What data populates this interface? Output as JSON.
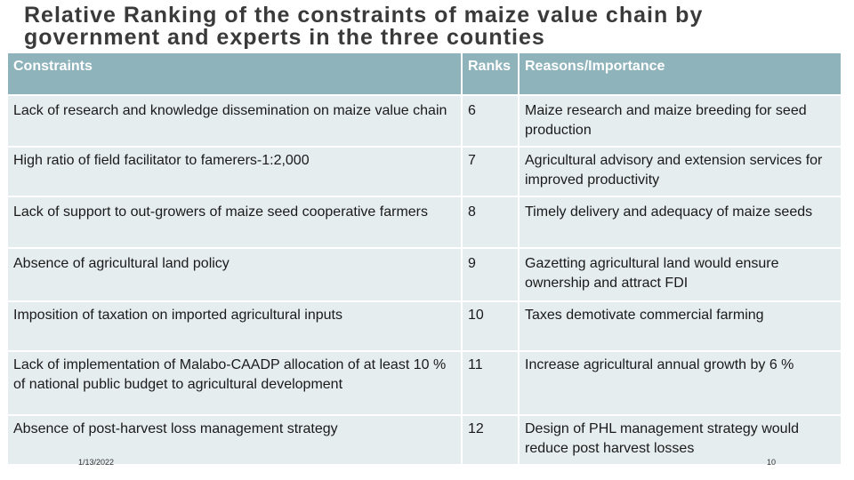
{
  "title": "Relative Ranking of the constraints of maize value chain by government and experts in the three counties",
  "table": {
    "headers": [
      "Constraints",
      "Ranks",
      "Reasons/Importance"
    ],
    "rows": [
      {
        "constraint": "Lack of research and knowledge dissemination on maize value chain",
        "rank": "6",
        "reason": "Maize research and maize breeding for seed production"
      },
      {
        "constraint": "High ratio of field facilitator to famerers-1:2,000",
        "rank": "7",
        "reason": "Agricultural advisory and extension services for improved productivity"
      },
      {
        "constraint": "Lack of support to  out-growers of  maize seed cooperative farmers",
        "rank": "8",
        "reason": "Timely delivery and adequacy  of maize seeds"
      },
      {
        "constraint": "Absence of agricultural land policy",
        "rank": "9",
        "reason": "Gazetting agricultural land would ensure ownership and attract FDI"
      },
      {
        "constraint": "Imposition of taxation on imported agricultural inputs",
        "rank": "10",
        "reason": "Taxes demotivate commercial farming"
      },
      {
        "constraint": "Lack of implementation of Malabo-CAADP allocation of at least 10 % of national public budget to agricultural development",
        "rank": "11",
        "reason": "Increase agricultural annual growth by 6 %"
      },
      {
        "constraint": "Absence of post-harvest loss management strategy",
        "rank": "12",
        "reason": "Design of PHL management strategy would reduce post harvest losses"
      }
    ]
  },
  "footer": {
    "date": "1/13/2022",
    "page": "10"
  },
  "colors": {
    "header_bg": "#8fb3ba",
    "row_bg": "#e6edee",
    "title": "#3a3a3a"
  }
}
